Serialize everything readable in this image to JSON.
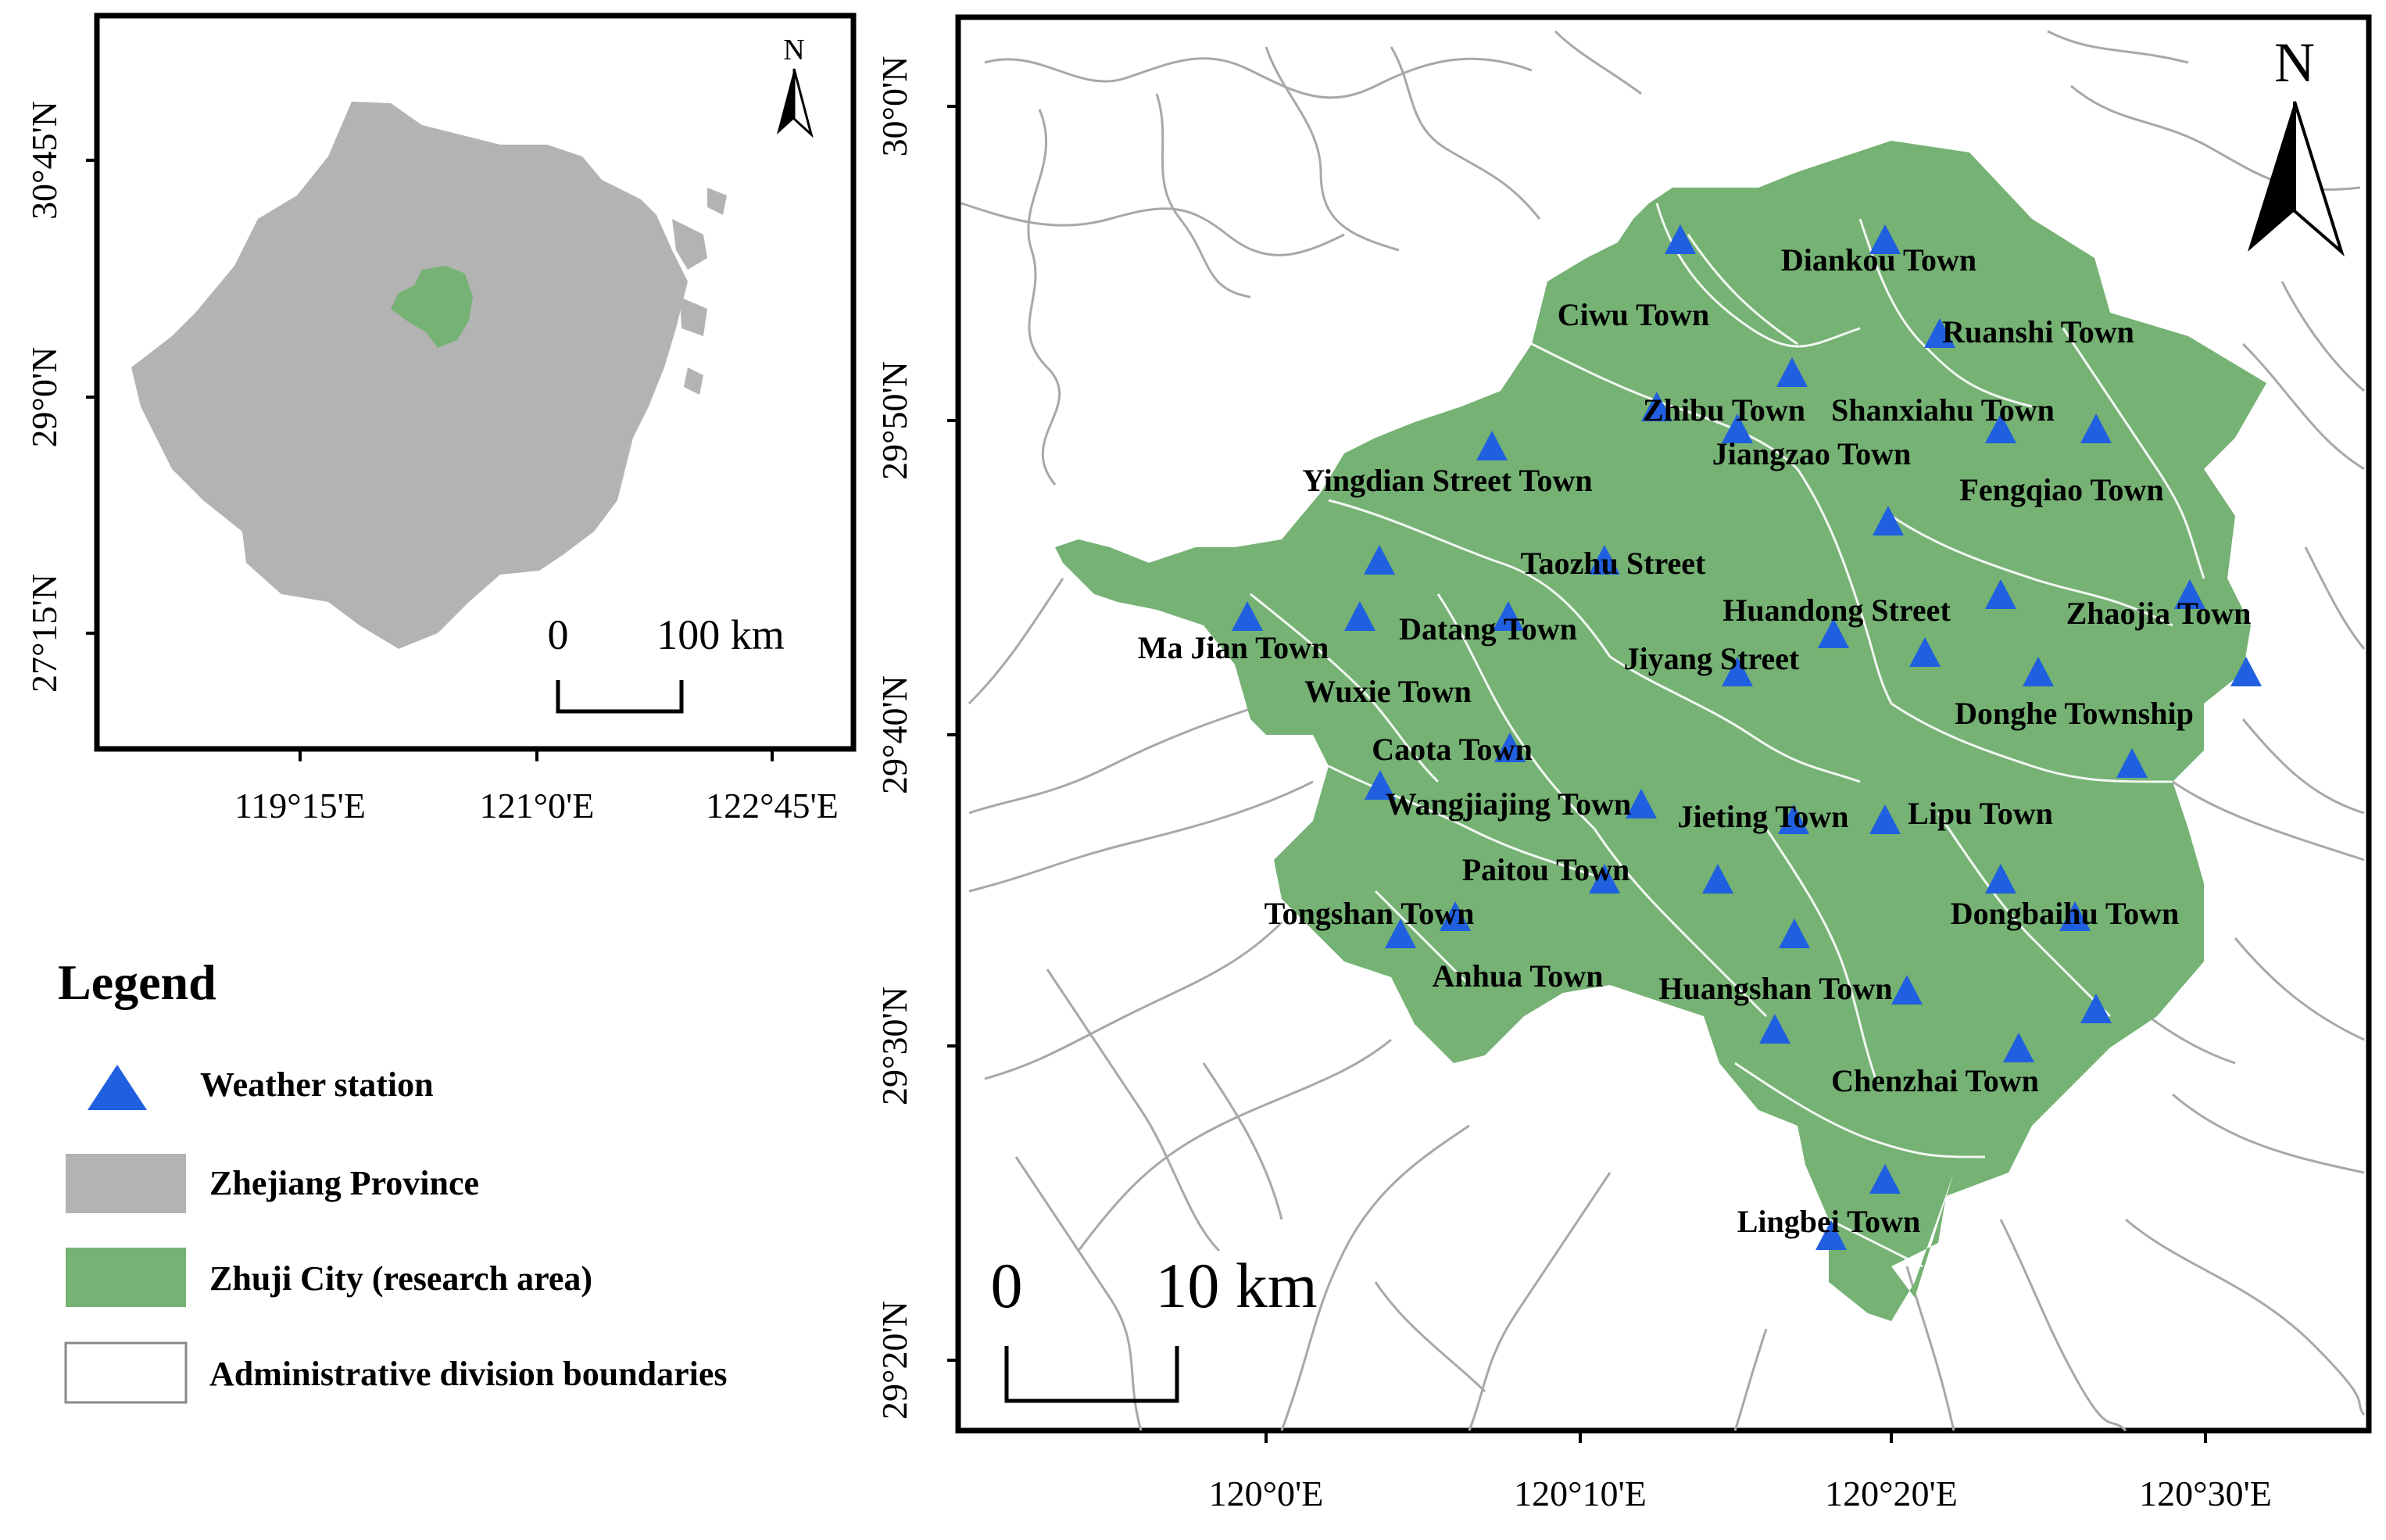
{
  "colors": {
    "weather_station": "#1f5fe0",
    "zhejiang_province": "#b3b3b3",
    "zhuji_city": "#75b274",
    "boundaries": "#a8a8a8"
  },
  "inset_map": {
    "north": "N",
    "scale_zero": "0",
    "scale_label": "100 km",
    "lat_ticks": [
      "30°45'N",
      "29°0'N",
      "27°15'N"
    ],
    "lon_ticks": [
      "119°15'E",
      "121°0'E",
      "122°45'E"
    ]
  },
  "legend": {
    "title": "Legend",
    "items": [
      {
        "label": "Weather station",
        "icon": "triangle-icon"
      },
      {
        "label": "Zhejiang Province",
        "icon": "gray-swatch"
      },
      {
        "label": "Zhuji City (research area)",
        "icon": "green-swatch"
      },
      {
        "label": "Administrative division boundaries",
        "icon": "outline-swatch"
      }
    ]
  },
  "main_map": {
    "north": "N",
    "scale_zero": "0",
    "scale_label": "10 km",
    "lat_ticks": [
      "30°0'N",
      "29°50'N",
      "29°40'N",
      "29°30'N",
      "29°20'N"
    ],
    "lon_ticks": [
      "120°0'E",
      "120°10'E",
      "120°20'E",
      "120°30'E"
    ],
    "towns": [
      "Diankou Town",
      "Ciwu Town",
      "Ruanshi Town",
      "Zhibu Town",
      "Shanxiahu Town",
      "Jiangzao Town",
      "Yingdian Street Town",
      "Fengqiao Town",
      "Taozhu Street",
      "Huandong Street",
      "Zhaojia Town",
      "Ma Jian Town",
      "Datang Town",
      "Jiyang Street",
      "Wuxie Town",
      "Donghe Township",
      "Caota Town",
      "Wangjiajing Town",
      "Jieting Town",
      "Lipu Town",
      "Paitou Town",
      "Tongshan Town",
      "Dongbaihu Town",
      "Anhua Town",
      "Huangshan Town",
      "Chenzhai Town",
      "Lingbei Town"
    ]
  }
}
